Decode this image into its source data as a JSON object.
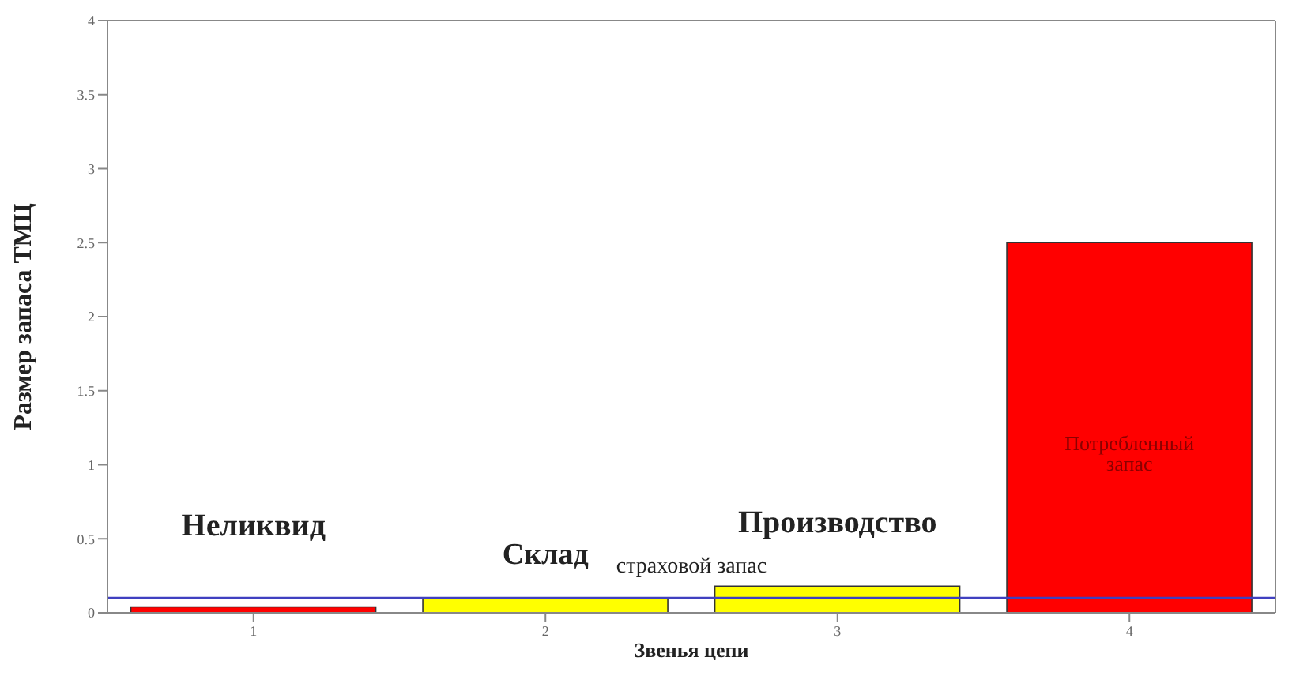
{
  "chart_data": {
    "type": "bar",
    "xlabel": "Звенья цепи",
    "ylabel": "Размер запаса ТМЦ",
    "categories": [
      "1",
      "2",
      "3",
      "4"
    ],
    "values": [
      0.04,
      0.1,
      0.18,
      2.5
    ],
    "colors": [
      "#ff0000",
      "#ffff00",
      "#ffff00",
      "#ff0000"
    ],
    "ylim": [
      0,
      4
    ],
    "yticks": [
      0,
      0.5,
      1,
      1.5,
      2,
      2.5,
      3,
      3.5,
      4
    ],
    "ref_lines": [
      {
        "axis": "y",
        "value": 0.1,
        "label": "страховой запас",
        "color": "#4040c0"
      }
    ],
    "annotations": [
      "Неликвид",
      "Склад",
      "Производство",
      "Потребленный запас"
    ]
  }
}
